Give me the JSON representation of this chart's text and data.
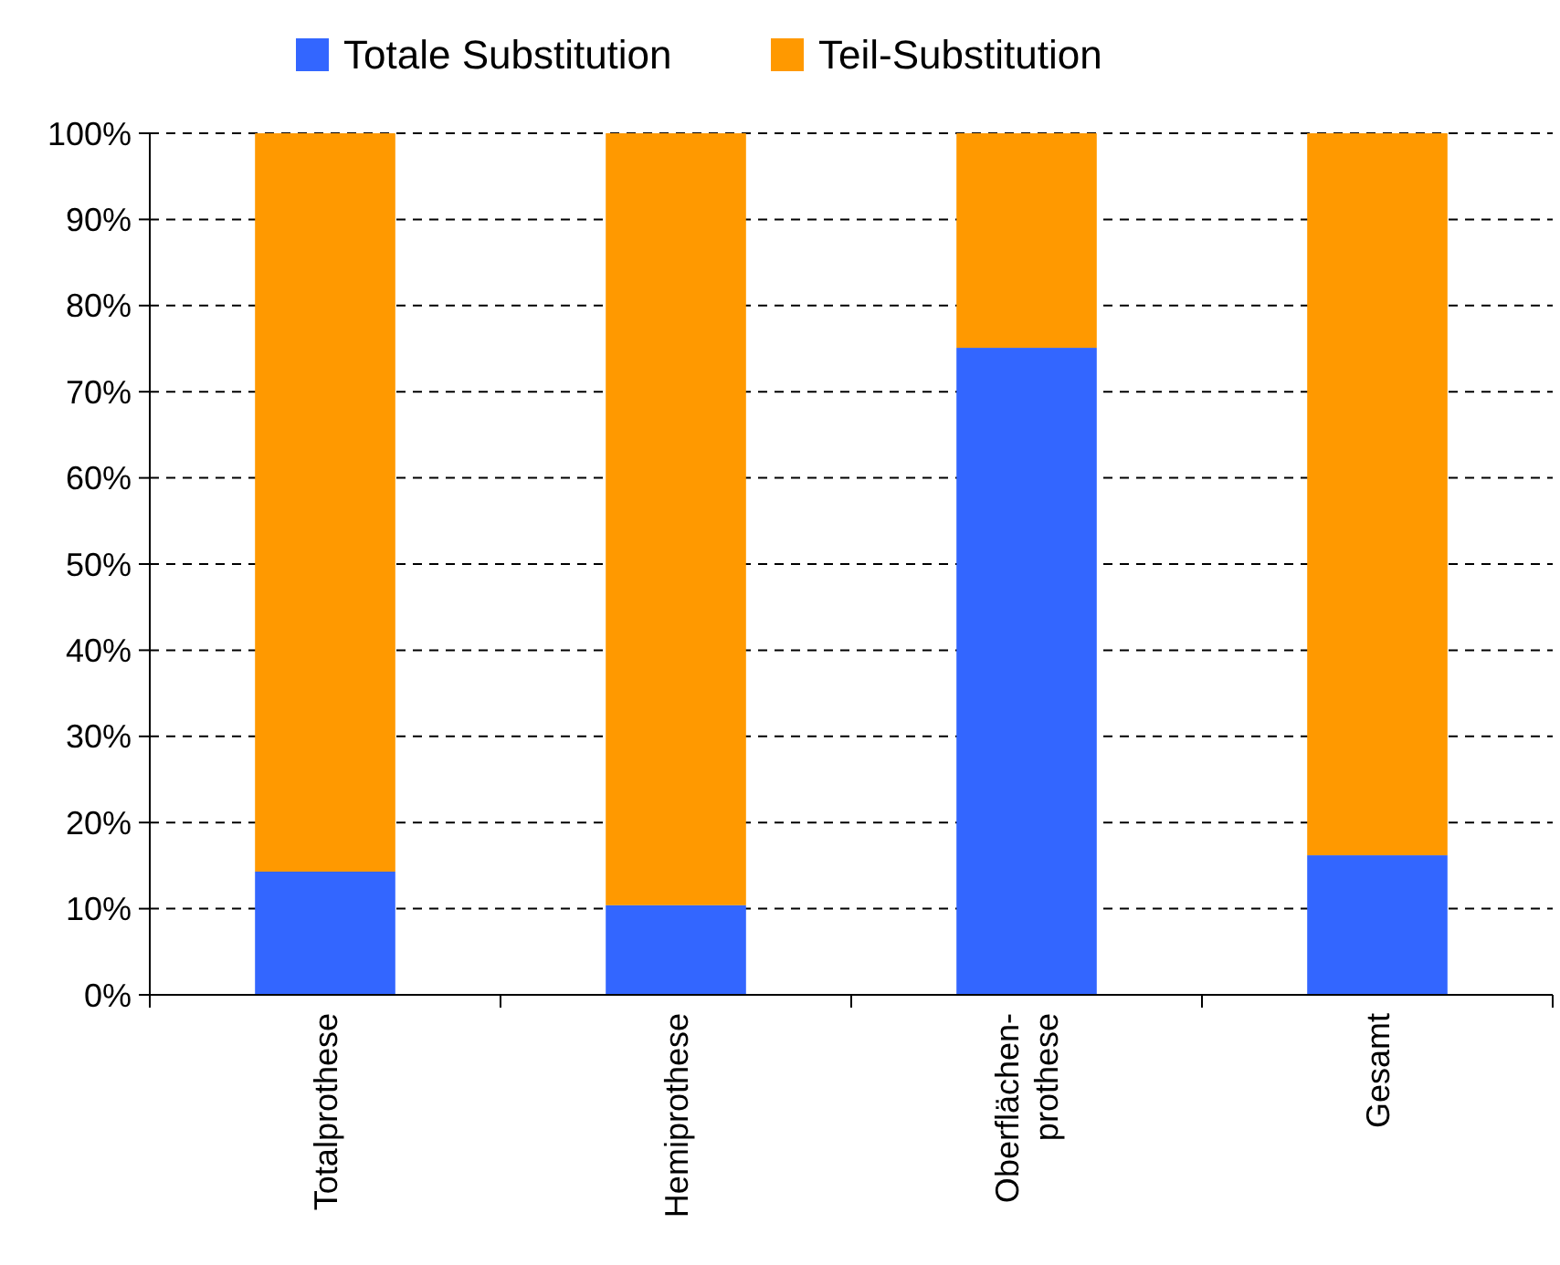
{
  "chart_data": {
    "type": "bar",
    "stacked": true,
    "categories": [
      "Totalprothese",
      "Hemiprothese",
      "Oberflächen-\nprothese",
      "Gesamt"
    ],
    "series": [
      {
        "name": "Totale Substitution",
        "color": "#3366ff",
        "values": [
          14.3,
          10.4,
          75.1,
          16.2
        ]
      },
      {
        "name": "Teil-Substitution",
        "color": "#ff9900",
        "values": [
          85.7,
          89.6,
          24.9,
          83.8
        ]
      }
    ],
    "ylim": [
      0,
      100
    ],
    "yticks": [
      {
        "value": 0,
        "label": "0%"
      },
      {
        "value": 10,
        "label": "10%"
      },
      {
        "value": 20,
        "label": "20%"
      },
      {
        "value": 30,
        "label": "30%"
      },
      {
        "value": 40,
        "label": "40%"
      },
      {
        "value": 50,
        "label": "50%"
      },
      {
        "value": 60,
        "label": "60%"
      },
      {
        "value": 70,
        "label": "70%"
      },
      {
        "value": 80,
        "label": "80%"
      },
      {
        "value": 90,
        "label": "90%"
      },
      {
        "value": 100,
        "label": "100%"
      }
    ],
    "grid": "y",
    "legend": "top"
  }
}
